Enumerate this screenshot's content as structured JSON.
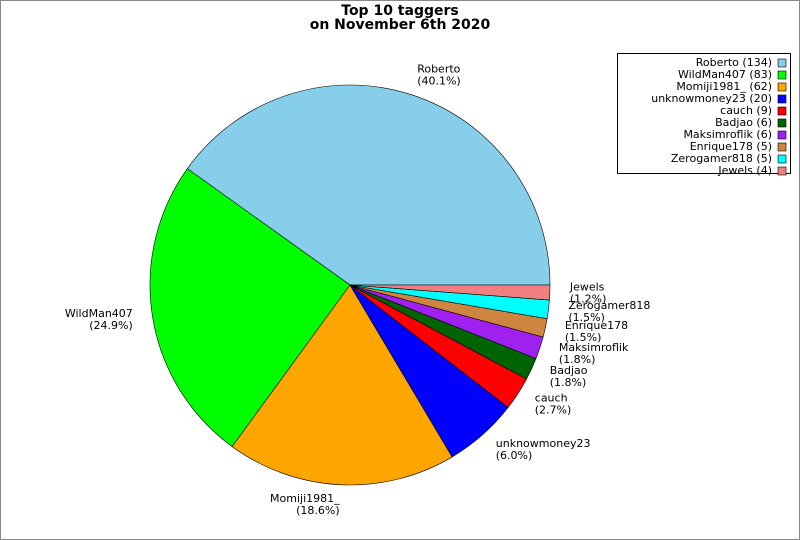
{
  "chart_data": {
    "type": "pie",
    "title": [
      "Top 10 taggers",
      "on November 6th 2020"
    ],
    "categories": [
      "Roberto",
      "WildMan407",
      "Momiji1981_",
      "unknowmoney23",
      "cauch",
      "Badjao",
      "Maksimroflik",
      "Enrique178",
      "Zerogamer818",
      "Jewels"
    ],
    "values": [
      134,
      83,
      62,
      20,
      9,
      6,
      6,
      5,
      5,
      4
    ],
    "value_labels": [
      "(40.1%)",
      "(24.9%)",
      "(18.6%)",
      "(6.0%)",
      "(2.7%)",
      "(1.8%)",
      "(1.8%)",
      "(1.5%)",
      "(1.5%)",
      "(1.2%)"
    ],
    "legend_labels": [
      "Roberto (134)",
      "WildMan407 (83)",
      "Momiji1981_ (62)",
      "unknowmoney23 (20)",
      "cauch (9)",
      "Badjao (6)",
      "Maksimroflik (6)",
      "Enrique178 (5)",
      "Zerogamer818 (5)",
      "Jewels (4)"
    ],
    "colors": [
      "#87ceeb",
      "#00ff00",
      "#ffa500",
      "#0000ff",
      "#ff0000",
      "#006400",
      "#a020f0",
      "#cd853f",
      "#00ffff",
      "#f08080"
    ],
    "legend": "upper right"
  }
}
